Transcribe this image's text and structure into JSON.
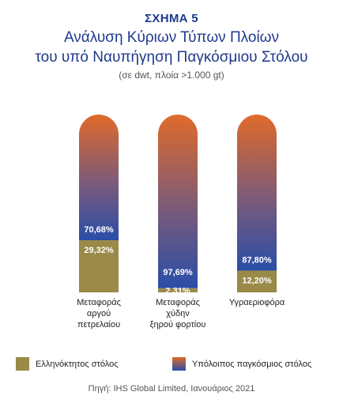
{
  "header": {
    "fig_label": "ΣΧΗΜΑ 5",
    "title_line1": "Ανάλυση Κύριων Τύπων Πλοίων",
    "title_line2": "του υπό Ναυπήγηση Παγκόσμιου Στόλου",
    "subtitle": "(σε dwt, πλοία >1.000 gt)"
  },
  "chart_data": {
    "type": "bar",
    "stacked": true,
    "percent": true,
    "categories": [
      "Μεταφοράς αργού πετρελαίου",
      "Μεταφοράς χύδην ξηρού φορτίου",
      "Υγραεριοφόρα"
    ],
    "category_lines": [
      [
        "Μεταφοράς",
        "αργού",
        "πετρελαίου"
      ],
      [
        "Μεταφοράς",
        "χύδην",
        "ξηρού φορτίου"
      ],
      [
        "Υγραεριοφόρα"
      ]
    ],
    "series": [
      {
        "name": "Ελληνόκτητος στόλος",
        "values": [
          29.32,
          2.31,
          12.2
        ],
        "labels": [
          "29,32%",
          "2,31%",
          "12,20%"
        ],
        "color": "#9a8a47"
      },
      {
        "name": "Υπόλοιπος παγκόσμιος στόλος",
        "values": [
          70.68,
          97.69,
          87.8
        ],
        "labels": [
          "70,68%",
          "97,69%",
          "87,80%"
        ],
        "color_top": "#e06a2a",
        "color_bottom": "#2a4ea8"
      }
    ],
    "ylim": [
      0,
      100
    ]
  },
  "legend": {
    "item1": "Ελληνόκτητος στόλος",
    "item2": "Υπόλοιπος παγκόσμιος στόλος"
  },
  "source": "Πηγή: IHS Global Limited, Ιανουάριος 2021"
}
